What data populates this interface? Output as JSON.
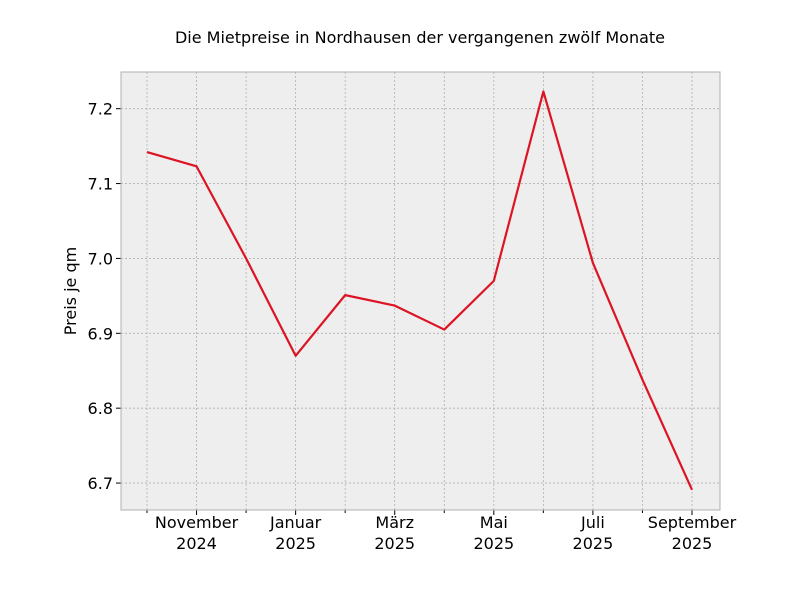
{
  "chart_data": {
    "type": "line",
    "title": "Die Mietpreise in Nordhausen der vergangenen zwölf Monate",
    "y_label": "Preis je qm",
    "categories": [
      null,
      "November\n2024",
      null,
      "Januar\n2025",
      null,
      "März\n2025",
      null,
      "Mai\n2025",
      null,
      "Juli\n2025",
      null,
      "September\n2025"
    ],
    "values": [
      7.142,
      7.123,
      7.0,
      6.87,
      6.951,
      6.937,
      6.905,
      6.97,
      7.223,
      6.994,
      6.838,
      6.691
    ],
    "color": "#dc1423",
    "ylim": [
      6.664,
      7.249
    ],
    "yticks": [
      6.7,
      6.8,
      6.9,
      {
        "value": 7,
        "label": "7.0"
      },
      7.1,
      7.2
    ],
    "grid": true
  }
}
